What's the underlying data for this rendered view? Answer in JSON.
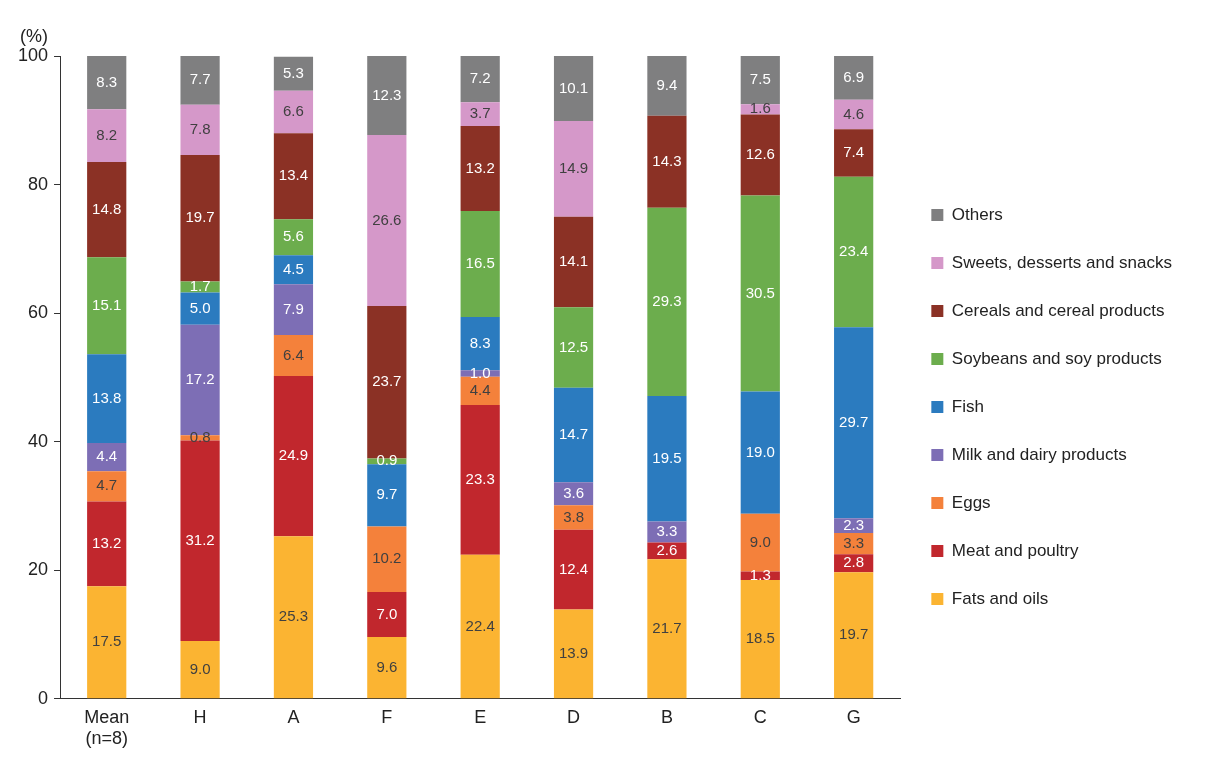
{
  "chart_data": {
    "type": "bar",
    "stacked": true,
    "ylabel": "(%)",
    "categories": [
      "Mean (n=8)",
      "H",
      "A",
      "F",
      "E",
      "D",
      "B",
      "C",
      "G"
    ],
    "series": [
      {
        "name": "Fats and oils",
        "color": "#fbb432",
        "values": [
          17.5,
          9.0,
          25.3,
          9.6,
          22.4,
          13.9,
          21.7,
          18.5,
          19.7
        ],
        "value_labels": [
          "17.5",
          "9.0",
          "25.3",
          "9.6",
          "22.4",
          "13.9",
          "21.7",
          "18.5",
          "19.7"
        ]
      },
      {
        "name": "Meat and poultry",
        "color": "#c1272d",
        "values": [
          13.2,
          31.2,
          24.9,
          7.0,
          23.3,
          12.4,
          2.6,
          1.3,
          2.8
        ],
        "value_labels": [
          "13.2",
          "31.2",
          "24.9",
          "7.0",
          "23.3",
          "12.4",
          "2.6",
          "1.3",
          "2.8"
        ]
      },
      {
        "name": "Eggs",
        "color": "#f4813b",
        "values": [
          4.7,
          0.8,
          6.4,
          10.2,
          4.4,
          3.8,
          null,
          9.0,
          3.3
        ],
        "value_labels": [
          "4.7",
          "0.8",
          "6.4",
          "10.2",
          "4.4",
          "3.8",
          null,
          "9.0",
          "3.3"
        ]
      },
      {
        "name": "Milk and dairy products",
        "color": "#7d6eb5",
        "values": [
          4.4,
          17.2,
          7.9,
          null,
          1.0,
          3.6,
          3.3,
          null,
          2.3
        ],
        "value_labels": [
          "4.4",
          "17.2",
          "7.9",
          null,
          "1.0",
          "3.6",
          "3.3",
          null,
          "2.3"
        ]
      },
      {
        "name": "Fish",
        "color": "#2b7bbf",
        "values": [
          13.8,
          5.0,
          4.5,
          9.7,
          8.3,
          14.7,
          19.5,
          19.0,
          29.7
        ],
        "value_labels": [
          "13.8",
          "5.0",
          "4.5",
          "9.7",
          "8.3",
          "14.7",
          "19.5",
          "19.0",
          "29.7"
        ]
      },
      {
        "name": "Soybeans and soy products",
        "color": "#6cad4d",
        "values": [
          15.1,
          1.7,
          5.6,
          0.9,
          16.5,
          12.5,
          29.3,
          30.5,
          23.4
        ],
        "value_labels": [
          "15.1",
          "1.7",
          "5.6",
          "0.9",
          "16.5",
          "12.5",
          "29.3",
          "30.5",
          "23.4"
        ]
      },
      {
        "name": "Cereals and cereal products",
        "color": "#8b3125",
        "values": [
          14.8,
          19.7,
          13.4,
          23.7,
          13.2,
          14.1,
          14.3,
          12.6,
          7.4
        ],
        "value_labels": [
          "14.8",
          "19.7",
          "13.4",
          "23.7",
          "13.2",
          "14.1",
          "14.3",
          "12.6",
          "7.4"
        ]
      },
      {
        "name": "Sweets, desserts and snacks",
        "color": "#d598c9",
        "values": [
          8.2,
          7.8,
          6.6,
          26.6,
          3.7,
          14.9,
          null,
          1.6,
          4.6
        ],
        "value_labels": [
          "8.2",
          "7.8",
          "6.6",
          "26.6",
          "3.7",
          "14.9",
          null,
          "1.6",
          "4.6"
        ]
      },
      {
        "name": "Others",
        "color": "#7f7f80",
        "values": [
          8.3,
          7.7,
          5.3,
          12.3,
          7.2,
          10.1,
          9.4,
          7.5,
          6.9
        ],
        "value_labels": [
          "8.3",
          "7.7",
          "5.3",
          "12.3",
          "7.2",
          "10.1",
          "9.4",
          "7.5",
          "6.9"
        ]
      }
    ],
    "ylim": [
      0,
      100
    ],
    "yticks": [
      0,
      20,
      40,
      60,
      80,
      100
    ],
    "grid": false,
    "legend": "right"
  }
}
